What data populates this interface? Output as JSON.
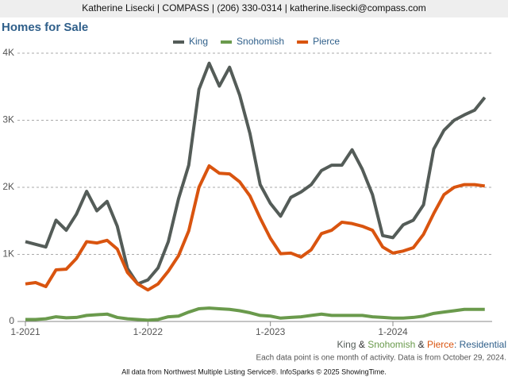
{
  "chart_data": {
    "type": "line",
    "header": "Katherine Lisecki | COMPASS | (206) 330-0314 | katherine.lisecki@compass.com",
    "title": "Homes for Sale",
    "categories": [
      "1-2021",
      null,
      null,
      null,
      null,
      null,
      null,
      null,
      null,
      null,
      null,
      null,
      "1-2022",
      null,
      null,
      null,
      null,
      null,
      null,
      null,
      null,
      null,
      null,
      null,
      "1-2023",
      null,
      null,
      null,
      null,
      null,
      null,
      null,
      null,
      null,
      null,
      null,
      "1-2024",
      null,
      null,
      null,
      null,
      null,
      null,
      null,
      null,
      null
    ],
    "series": [
      {
        "name": "King",
        "color": "#545c58",
        "values": [
          1190,
          1150,
          1110,
          1510,
          1360,
          1600,
          1940,
          1650,
          1790,
          1420,
          790,
          560,
          620,
          800,
          1190,
          1830,
          2330,
          3460,
          3850,
          3510,
          3790,
          3370,
          2800,
          2040,
          1760,
          1570,
          1850,
          1930,
          2040,
          2250,
          2330,
          2330,
          2560,
          2270,
          1890,
          1280,
          1250,
          1440,
          1510,
          1740,
          2570,
          2850,
          3000,
          3080,
          3150,
          3340
        ]
      },
      {
        "name": "Snohomish",
        "color": "#6a9a4c",
        "values": [
          30,
          30,
          40,
          70,
          55,
          60,
          90,
          100,
          110,
          60,
          40,
          30,
          20,
          30,
          70,
          80,
          140,
          190,
          200,
          190,
          180,
          160,
          130,
          90,
          80,
          50,
          60,
          70,
          90,
          110,
          90,
          90,
          90,
          90,
          70,
          60,
          50,
          50,
          60,
          80,
          120,
          140,
          160,
          180,
          180,
          180
        ]
      },
      {
        "name": "Pierce",
        "color": "#d9540f",
        "values": [
          560,
          580,
          520,
          770,
          780,
          940,
          1190,
          1170,
          1210,
          1080,
          730,
          560,
          470,
          560,
          750,
          980,
          1350,
          2000,
          2320,
          2210,
          2200,
          2080,
          1870,
          1540,
          1240,
          1010,
          1020,
          960,
          1070,
          1310,
          1360,
          1480,
          1460,
          1420,
          1360,
          1110,
          1020,
          1050,
          1100,
          1300,
          1610,
          1890,
          2000,
          2040,
          2040,
          2020
        ]
      }
    ],
    "ylim": [
      0,
      4000
    ],
    "yticks": [
      0,
      {
        "value": 1000,
        "label": "1K"
      },
      {
        "value": 2000,
        "label": "2K"
      },
      {
        "value": 3000,
        "label": "3K"
      },
      {
        "value": 4000,
        "label": "4K"
      }
    ],
    "grid": true,
    "note_parts": [
      {
        "text": "King",
        "color": "#545c58"
      },
      {
        "text": " & ",
        "color": "#333333"
      },
      {
        "text": "Snohomish",
        "color": "#6a9a4c"
      },
      {
        "text": " & ",
        "color": "#333333"
      },
      {
        "text": "Pierce",
        "color": "#d9540f"
      },
      {
        "text": ": Residential",
        "color": "#2f5f8a"
      }
    ],
    "note": "Each data point is one month of activity. Data is from October 29, 2024.",
    "footer": "All data from Northwest Multiple Listing Service®. InfoSparks © 2025 ShowingTime."
  }
}
